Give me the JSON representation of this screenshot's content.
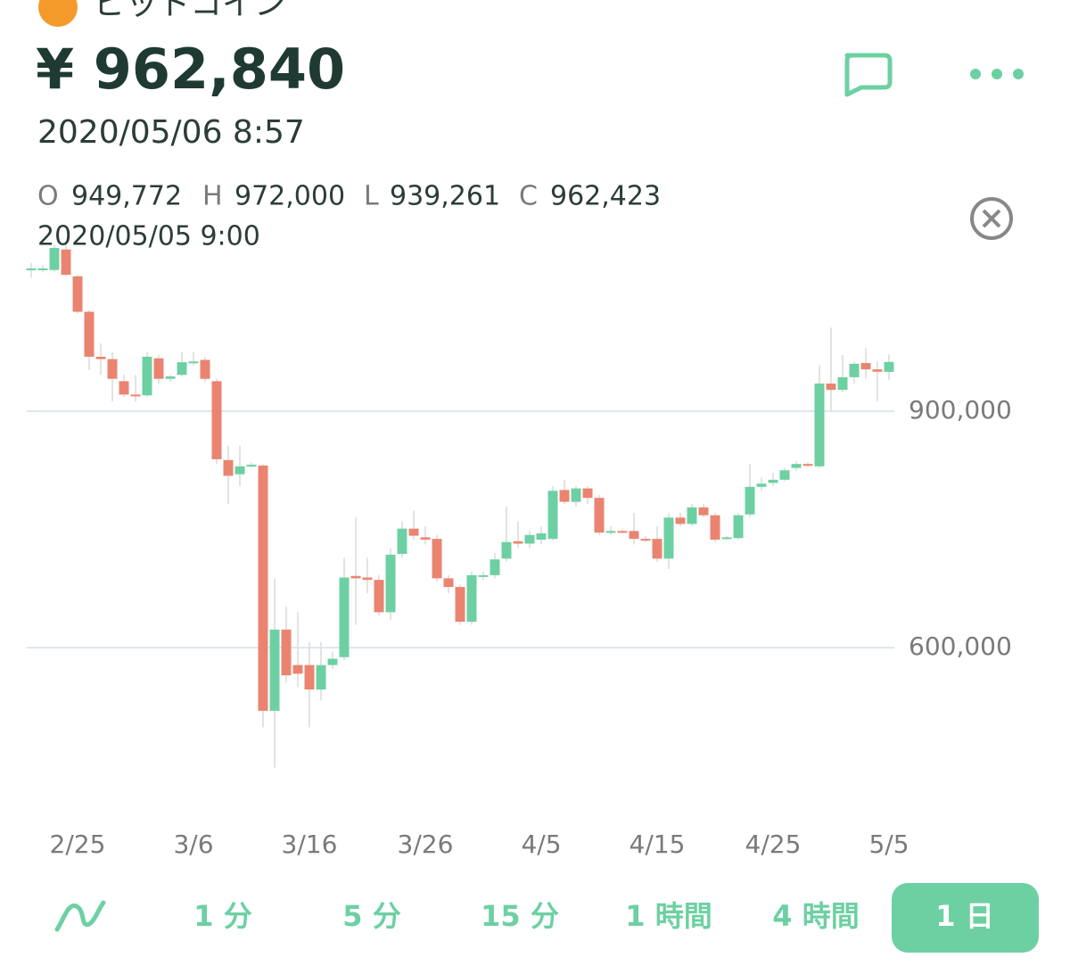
{
  "header": {
    "coin": "ビットコイン",
    "price": "¥ 962,840",
    "timestamp": "2020/05/06 8:57",
    "ohlc": [
      {
        "key": "O",
        "value": "949,772"
      },
      {
        "key": "H",
        "value": "972,000"
      },
      {
        "key": "L",
        "value": "939,261"
      },
      {
        "key": "C",
        "value": "962,423"
      }
    ],
    "candle_time": "2020/05/05 9:00"
  },
  "tabs": [
    "1 分",
    "5 分",
    "15 分",
    "1 時間",
    "4 時間",
    "1 日"
  ],
  "selected_tab": 5,
  "chart_data": {
    "type": "candlestick",
    "categories": [
      null,
      null,
      null,
      null,
      "2/25",
      null,
      null,
      null,
      null,
      null,
      null,
      null,
      null,
      null,
      "3/6",
      null,
      null,
      null,
      null,
      null,
      null,
      null,
      null,
      null,
      "3/16",
      null,
      null,
      null,
      null,
      null,
      null,
      null,
      null,
      null,
      "3/26",
      null,
      null,
      null,
      null,
      null,
      null,
      null,
      null,
      null,
      "4/5",
      null,
      null,
      null,
      null,
      null,
      null,
      null,
      null,
      null,
      "4/15",
      null,
      null,
      null,
      null,
      null,
      null,
      null,
      null,
      null,
      "4/25",
      null,
      null,
      null,
      null,
      null,
      null,
      null,
      null,
      null,
      "5/5"
    ],
    "open": [
      1079000,
      1080000,
      1079000,
      1105000,
      1071000,
      1026000,
      969000,
      966000,
      938000,
      921000,
      920000,
      967000,
      941000,
      946000,
      962000,
      965000,
      938000,
      838000,
      820000,
      831000,
      831000,
      520000,
      623000,
      578000,
      578000,
      547000,
      578000,
      588000,
      691000,
      689000,
      686000,
      645000,
      719000,
      751000,
      740000,
      738000,
      688000,
      677000,
      633000,
      691000,
      692000,
      713000,
      735000,
      732000,
      737000,
      738000,
      800000,
      785000,
      802000,
      790000,
      747000,
      748000,
      748000,
      738000,
      738000,
      713000,
      765000,
      757000,
      778000,
      768000,
      739000,
      739000,
      769000,
      804000,
      809000,
      813000,
      828000,
      833000,
      830000,
      935000,
      927000,
      943000,
      961000,
      953000,
      949772
    ],
    "high": [
      1088000,
      1085000,
      1111000,
      1111000,
      1073000,
      1028000,
      986000,
      975000,
      946000,
      946000,
      975000,
      971000,
      946000,
      975000,
      975000,
      969000,
      941000,
      856000,
      856000,
      835000,
      833000,
      688000,
      652000,
      645000,
      607000,
      607000,
      595000,
      714000,
      765000,
      714000,
      692000,
      726000,
      760000,
      774000,
      754000,
      743000,
      692000,
      680000,
      697000,
      697000,
      720000,
      779000,
      760000,
      748000,
      754000,
      805000,
      813000,
      805000,
      805000,
      794000,
      754000,
      751000,
      771000,
      742000,
      754000,
      771000,
      771000,
      782000,
      782000,
      771000,
      742000,
      771000,
      833000,
      816000,
      822000,
      828000,
      837000,
      835000,
      958000,
      1006000,
      971000,
      963000,
      980000,
      963000,
      972000
    ],
    "low": [
      1069000,
      1076000,
      1077000,
      1071000,
      1024000,
      952000,
      946000,
      912000,
      918000,
      912000,
      918000,
      935000,
      937000,
      944000,
      958000,
      937000,
      833000,
      782000,
      805000,
      829000,
      499000,
      448000,
      556000,
      550000,
      499000,
      533000,
      573000,
      584000,
      629000,
      669000,
      641000,
      635000,
      714000,
      737000,
      731000,
      684000,
      669000,
      629000,
      629000,
      686000,
      688000,
      709000,
      726000,
      726000,
      731000,
      736000,
      782000,
      779000,
      782000,
      743000,
      743000,
      745000,
      731000,
      734000,
      709000,
      700000,
      754000,
      754000,
      765000,
      734000,
      737000,
      737000,
      765000,
      799000,
      805000,
      811000,
      824000,
      829000,
      828000,
      899000,
      924000,
      935000,
      941000,
      912000,
      939261
    ],
    "close": [
      1081000,
      1081000,
      1107000,
      1073000,
      1026000,
      969000,
      966000,
      941000,
      921000,
      920000,
      969000,
      941000,
      944000,
      962000,
      963000,
      941000,
      839000,
      818000,
      830000,
      832000,
      520000,
      623000,
      565000,
      567000,
      547000,
      578000,
      586000,
      689000,
      688000,
      686000,
      645000,
      718000,
      751000,
      742000,
      737000,
      688000,
      677000,
      633000,
      692000,
      692000,
      712000,
      734000,
      732000,
      743000,
      745000,
      799000,
      785000,
      802000,
      790000,
      746000,
      748000,
      747000,
      738000,
      736000,
      713000,
      765000,
      757000,
      778000,
      768000,
      737000,
      740000,
      768000,
      804000,
      808000,
      813000,
      825000,
      833000,
      831000,
      935000,
      927000,
      943000,
      960000,
      953000,
      950000,
      962423
    ],
    "ylim": [
      400000,
      1116000
    ],
    "yticks": [
      {
        "value": 600000,
        "label": "600,000"
      },
      {
        "value": 900000,
        "label": "900,000"
      }
    ],
    "grid": true,
    "up_color": "#6dd0a3",
    "down_color": "#ea8470"
  }
}
